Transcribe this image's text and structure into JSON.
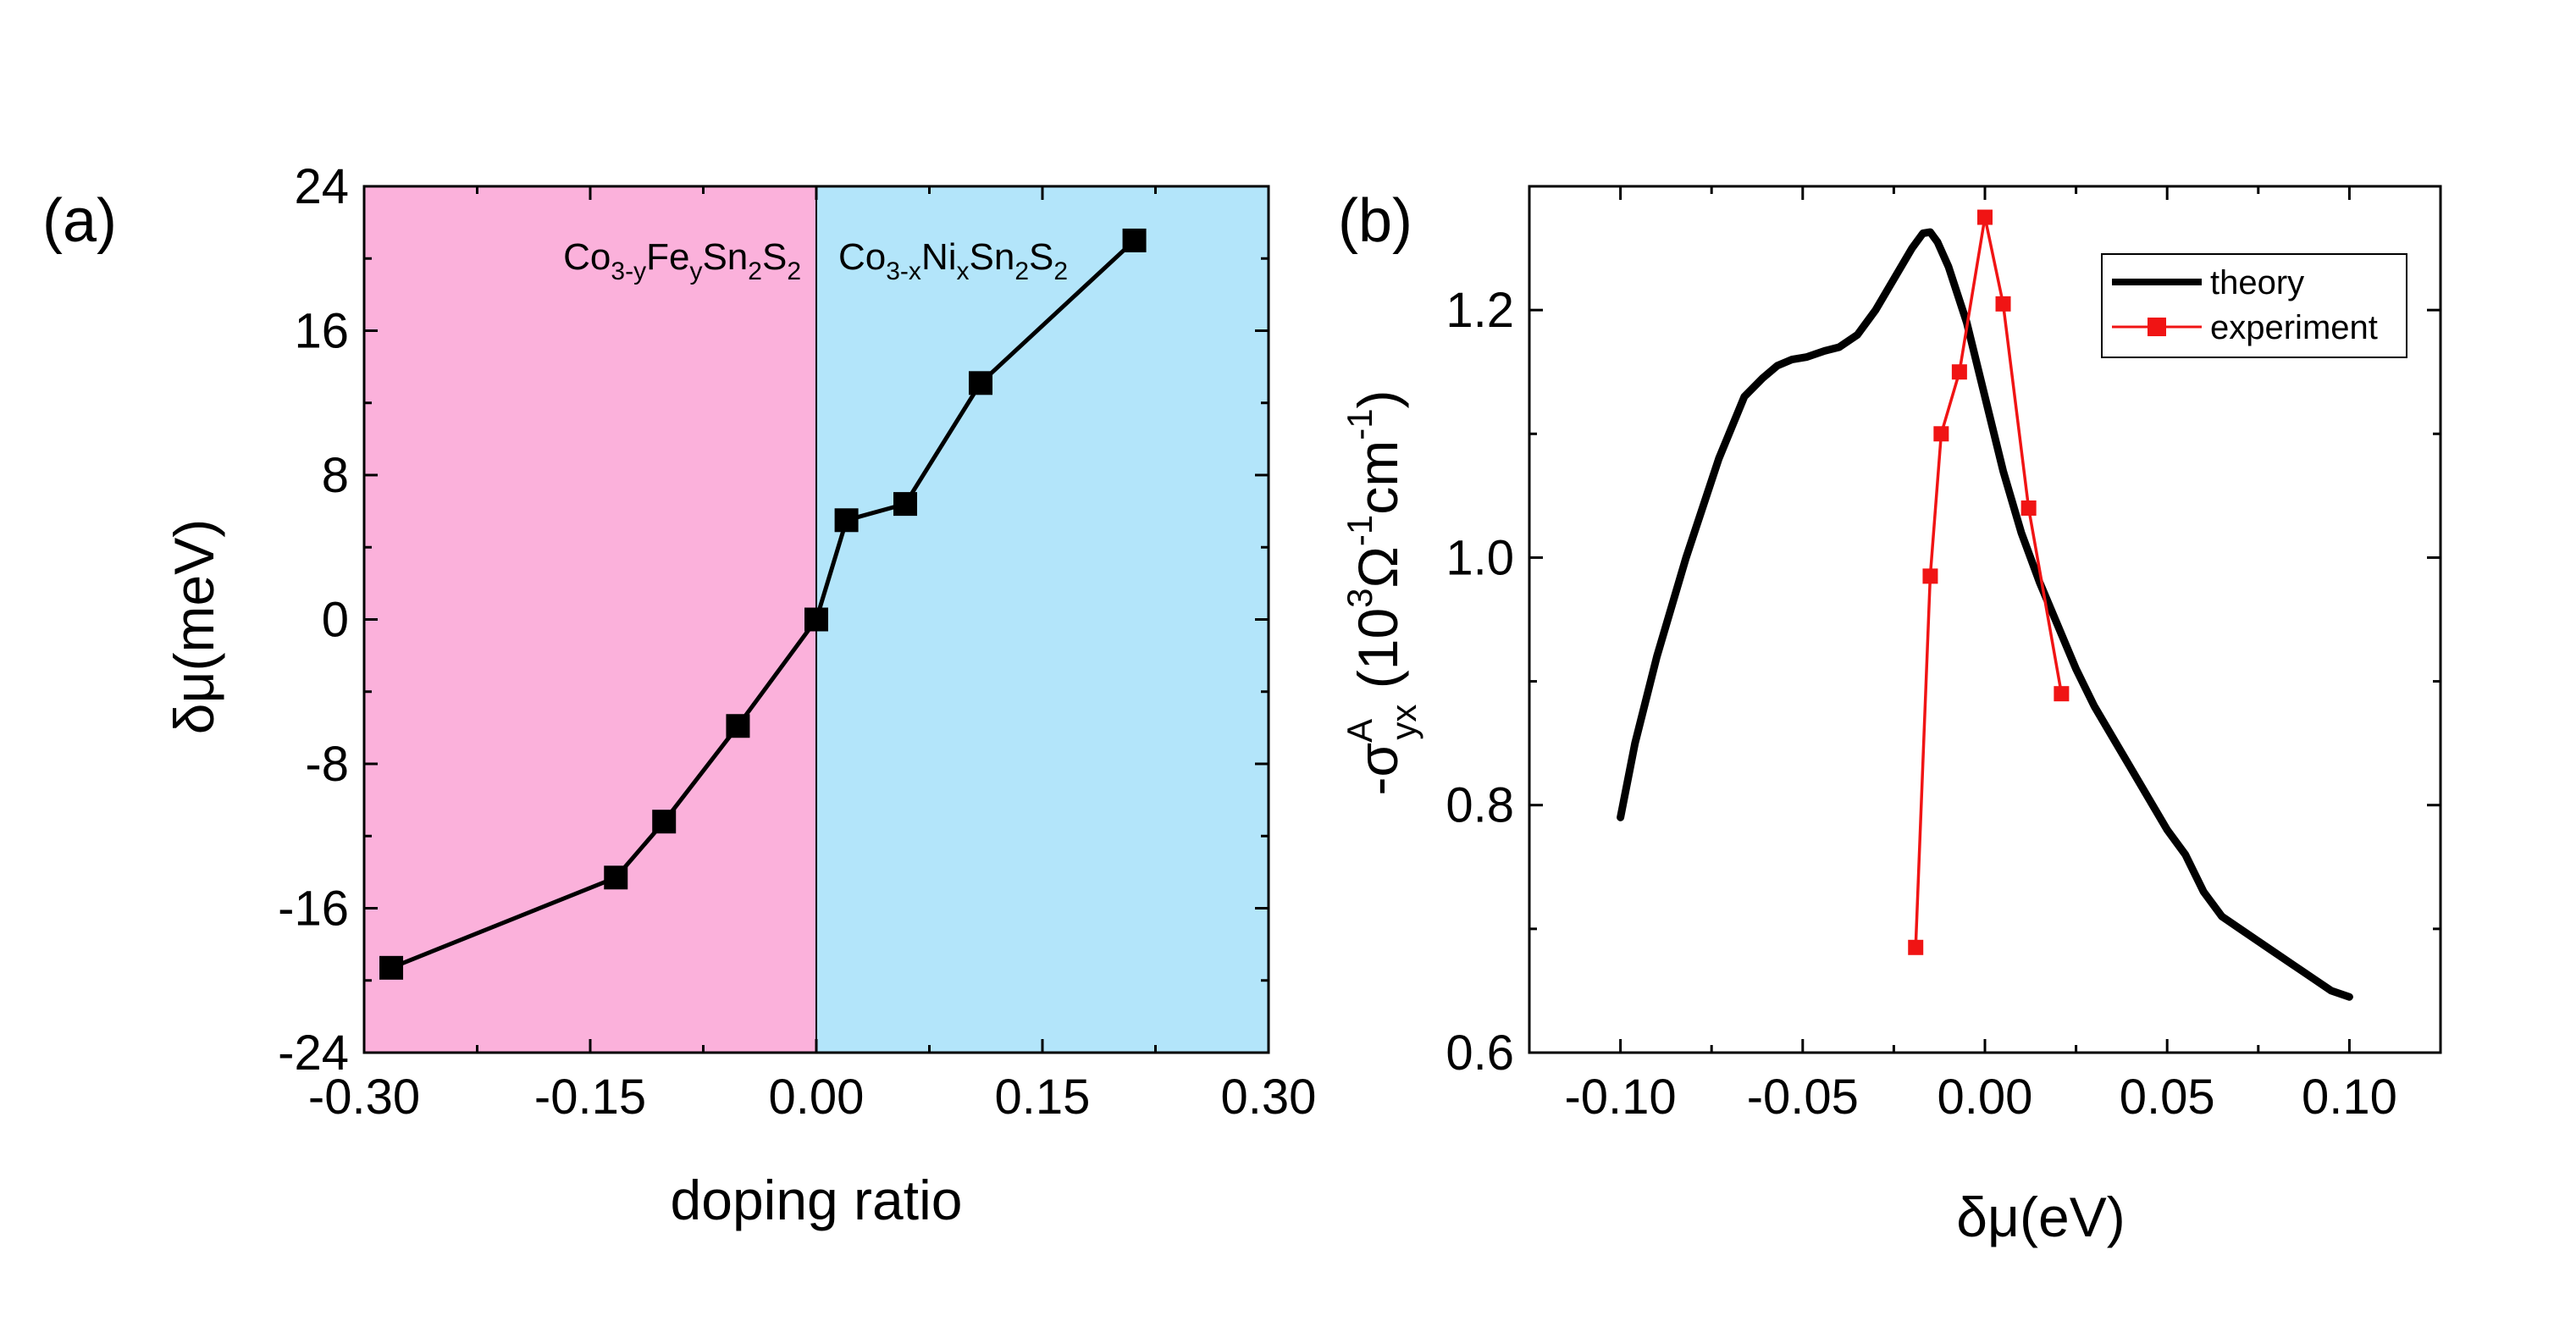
{
  "chart_data": [
    {
      "panel": "(a)",
      "type": "line",
      "xlabel": "doping ratio",
      "ylabel": "δμ(meV)",
      "xlim": [
        -0.3,
        0.3
      ],
      "ylim": [
        -24,
        24
      ],
      "xticks": [
        -0.3,
        -0.15,
        0.0,
        0.15,
        0.3
      ],
      "yticks": [
        24,
        16,
        8,
        0,
        -8,
        -16,
        -24
      ],
      "xtick_labels": [
        "-0.30",
        "-0.15",
        "0.00",
        "0.15",
        "0.30"
      ],
      "ytick_labels": [
        "24",
        "16",
        "8",
        "0",
        "-8",
        "-16",
        "-24"
      ],
      "regions": [
        {
          "x_from": -0.3,
          "x_to": 0.0,
          "color": "#fbb1db",
          "label": {
            "base": "Co",
            "s1": "3-y",
            "mid": "Fe",
            "s2": "y",
            "tail": "Sn",
            "s3": "2",
            "end": "S",
            "s4": "2"
          }
        },
        {
          "x_from": 0.0,
          "x_to": 0.3,
          "color": "#b3e5fa",
          "label": {
            "base": "Co",
            "s1": "3-x",
            "mid": "Ni",
            "s2": "x",
            "tail": "Sn",
            "s3": "2",
            "end": "S",
            "s4": "2"
          }
        }
      ],
      "series": [
        {
          "color": "#000000",
          "marker": "square",
          "x": [
            -0.282,
            -0.133,
            -0.101,
            -0.052,
            0.0,
            0.02,
            0.059,
            0.109,
            0.211
          ],
          "y": [
            -19.3,
            -14.3,
            -11.2,
            -5.9,
            0.0,
            5.5,
            6.4,
            13.1,
            21.0
          ]
        }
      ]
    },
    {
      "panel": "(b)",
      "type": "line",
      "xlabel": "δμ(eV)",
      "ylabel": {
        "pre": "-σ",
        "sup1": "A",
        "sub1": "yx",
        "mid": " (10",
        "sup2": "3",
        "omega": "Ω",
        "sup3": "-1",
        "cm": "cm",
        "sup4": "-1",
        "post": ")"
      },
      "xlim": [
        -0.125,
        0.125
      ],
      "ylim": [
        0.6,
        1.3
      ],
      "xticks": [
        -0.1,
        -0.05,
        0.0,
        0.05,
        0.1
      ],
      "yticks": [
        1.2,
        1.0,
        0.8,
        0.6
      ],
      "xtick_labels": [
        "-0.10",
        "-0.05",
        "0.00",
        "0.05",
        "0.10"
      ],
      "ytick_labels": [
        "1.2",
        "1.0",
        "0.8",
        "0.6"
      ],
      "legend": {
        "position": "top-right",
        "entries": [
          "theory",
          "experiment"
        ]
      },
      "series": [
        {
          "name": "theory",
          "color": "#000000",
          "marker": "none",
          "x": [
            -0.1,
            -0.096,
            -0.09,
            -0.082,
            -0.073,
            -0.066,
            -0.061,
            -0.057,
            -0.053,
            -0.049,
            -0.044,
            -0.04,
            -0.035,
            -0.03,
            -0.025,
            -0.02,
            -0.017,
            -0.015,
            -0.013,
            -0.01,
            -0.005,
            0.0,
            0.005,
            0.01,
            0.015,
            0.02,
            0.025,
            0.03,
            0.035,
            0.04,
            0.045,
            0.05,
            0.055,
            0.06,
            0.065,
            0.07,
            0.075,
            0.08,
            0.085,
            0.09,
            0.095,
            0.1
          ],
          "y": [
            0.79,
            0.85,
            0.92,
            1.0,
            1.08,
            1.13,
            1.145,
            1.155,
            1.16,
            1.162,
            1.167,
            1.17,
            1.18,
            1.2,
            1.225,
            1.25,
            1.262,
            1.263,
            1.255,
            1.235,
            1.19,
            1.13,
            1.07,
            1.02,
            0.98,
            0.945,
            0.91,
            0.88,
            0.855,
            0.83,
            0.805,
            0.78,
            0.76,
            0.73,
            0.71,
            0.7,
            0.69,
            0.68,
            0.67,
            0.66,
            0.65,
            0.645
          ]
        },
        {
          "name": "experiment",
          "color": "#f01414",
          "marker": "square",
          "x": [
            -0.019,
            -0.015,
            -0.012,
            -0.007,
            0.0,
            0.005,
            0.012,
            0.021
          ],
          "y": [
            0.685,
            0.985,
            1.1,
            1.15,
            1.275,
            1.205,
            1.04,
            0.89
          ]
        }
      ]
    }
  ]
}
